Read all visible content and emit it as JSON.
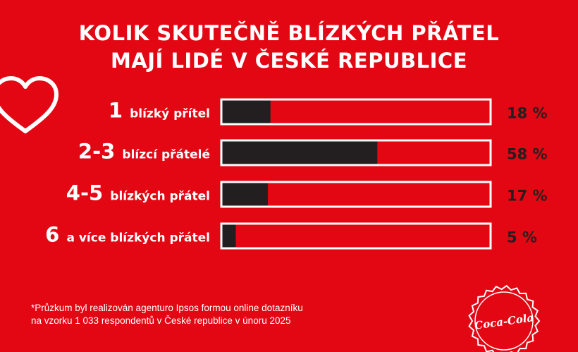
{
  "title": {
    "line1": "KOLIK SKUTEČNĚ BLÍZKÝCH PŘÁTEL",
    "line2": "MAJÍ LIDÉ V ČESKÉ REPUBLICE"
  },
  "colors": {
    "background": "#e30613",
    "bar_fill": "#231f20",
    "bar_track": "#e30613",
    "bar_border": "#ffffff",
    "text": "#ffffff",
    "value_text": "#231f20"
  },
  "chart_data": {
    "type": "bar",
    "orientation": "horizontal",
    "categories": [
      {
        "number": "1",
        "text": "blízký přítel"
      },
      {
        "number": "2-3",
        "text": "blízcí přátelé"
      },
      {
        "number": "4-5",
        "text": "blízkých přátel"
      },
      {
        "number": "6",
        "text": "a více blízkých přátel"
      }
    ],
    "values": [
      18,
      58,
      17,
      5
    ],
    "value_labels": [
      "18 %",
      "58 %",
      "17 %",
      "5 %"
    ],
    "unit": "%",
    "xlim": [
      0,
      100
    ],
    "grid": false,
    "legend": "none"
  },
  "footnote": {
    "line1": "*Průzkum byl realizován agenturo Ipsos formou online dotazníku",
    "line2": "na vzorku 1 033 respondentů v České republice v únoru 2025"
  },
  "icons": {
    "heart": "heart-outline-icon",
    "logo": "coca-cola-bottle-cap-logo"
  },
  "logo_text": "Coca-Cola"
}
